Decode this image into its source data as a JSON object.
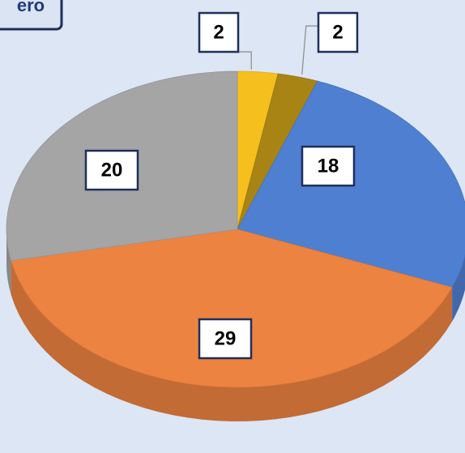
{
  "chart_data": {
    "type": "pie",
    "annotation": "ero",
    "categories": [
      null,
      null,
      null,
      null,
      null
    ],
    "values": [
      2,
      2,
      18,
      29,
      20
    ],
    "colors": [
      "#f5bf1d",
      "#a78414",
      "#4f7fd0",
      "#ed8340",
      "#a5a5a5"
    ]
  }
}
